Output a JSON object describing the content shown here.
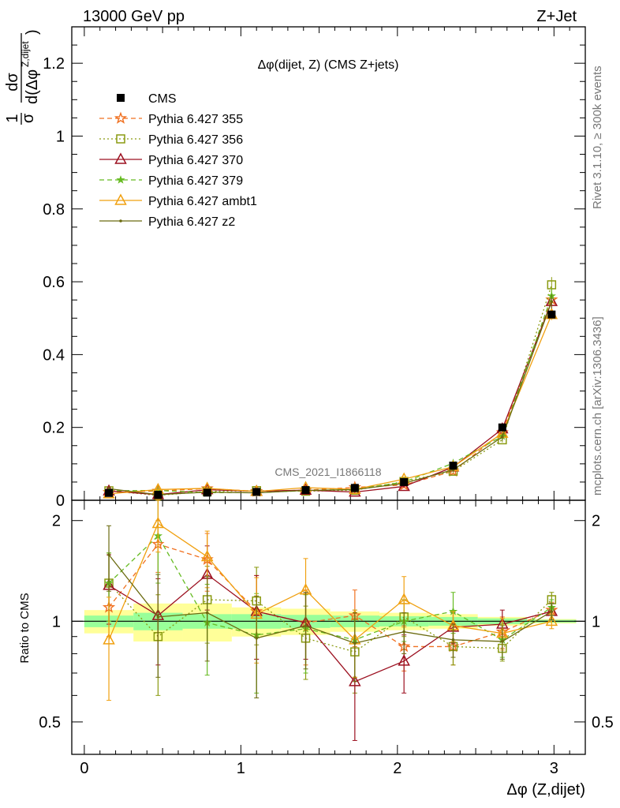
{
  "header": {
    "energy_label": "13000 GeV pp",
    "process_label": "Z+Jet"
  },
  "chart_data": {
    "type": "line",
    "title": "Δφ(dijet, Z) (CMS Z+jets)",
    "analysis_label": "CMS_2021_I1866118",
    "side_label_top": "Rivet 3.1.10, ≥ 300k events",
    "side_label_bottom": "mcplots.cern.ch [arXiv:1306.3436]",
    "ylabel_main": "1/σ dσ/d(Δφ^{Z,dijet})",
    "ylabel_main_parts": {
      "one": "1",
      "sigma": "σ",
      "dsigma": "dσ",
      "den_left": "d(Δφ",
      "den_sup": "Z,dijet",
      "den_right": ")"
    },
    "ylabel_ratio": "Ratio to CMS",
    "xlabel": "Δφ (Z,dijet)",
    "xlim": [
      -0.08,
      3.2
    ],
    "ylim_main": [
      0,
      1.3
    ],
    "ylim_ratio": [
      0.4,
      2.3
    ],
    "yscale_ratio": "log",
    "x_ticks": [
      "0",
      "1",
      "2",
      "3"
    ],
    "y_ticks_main": [
      "0",
      "0.2",
      "0.4",
      "0.6",
      "0.8",
      "1",
      "1.2"
    ],
    "y_ticks_ratio": [
      "0.5",
      "1",
      "2"
    ],
    "x": [
      0.157,
      0.471,
      0.785,
      1.1,
      1.414,
      1.728,
      2.042,
      2.356,
      2.67,
      2.985
    ],
    "data": {
      "name": "CMS",
      "values": [
        0.02,
        0.015,
        0.021,
        0.023,
        0.028,
        0.034,
        0.05,
        0.095,
        0.2,
        0.51
      ],
      "band_bins": [
        {
          "x0": 0.0,
          "x1": 0.314,
          "stat": 0.04,
          "tot": 0.08
        },
        {
          "x0": 0.314,
          "x1": 0.628,
          "stat": 0.06,
          "tot": 0.13
        },
        {
          "x0": 0.628,
          "x1": 0.942,
          "stat": 0.05,
          "tot": 0.13
        },
        {
          "x0": 0.942,
          "x1": 1.257,
          "stat": 0.05,
          "tot": 0.1
        },
        {
          "x0": 1.257,
          "x1": 1.571,
          "stat": 0.045,
          "tot": 0.09
        },
        {
          "x0": 1.571,
          "x1": 1.885,
          "stat": 0.04,
          "tot": 0.07
        },
        {
          "x0": 1.885,
          "x1": 2.199,
          "stat": 0.035,
          "tot": 0.06
        },
        {
          "x0": 2.199,
          "x1": 2.513,
          "stat": 0.03,
          "tot": 0.05
        },
        {
          "x0": 2.513,
          "x1": 2.827,
          "stat": 0.02,
          "tot": 0.03
        },
        {
          "x0": 2.827,
          "x1": 3.142,
          "stat": 0.01,
          "tot": 0.015
        }
      ]
    },
    "series": [
      {
        "name": "Pythia 6.427 355",
        "color": "#f07020",
        "dash": "6,4",
        "marker": "star",
        "ratio": [
          1.1,
          1.7,
          1.53,
          1.07,
          0.99,
          1.04,
          0.84,
          0.84,
          0.93,
          1.08
        ],
        "err": [
          0.2,
          0.3,
          0.3,
          0.3,
          0.25,
          0.2,
          0.13,
          0.1,
          0.1,
          0.06
        ]
      },
      {
        "name": "Pythia 6.427 356",
        "color": "#8a9a10",
        "dash": "2,3",
        "marker": "square",
        "ratio": [
          1.3,
          0.9,
          1.16,
          1.15,
          0.89,
          0.81,
          1.03,
          0.84,
          0.83,
          1.16
        ],
        "err": [
          0.3,
          0.3,
          0.3,
          0.3,
          0.22,
          0.2,
          0.13,
          0.1,
          0.07,
          0.06
        ]
      },
      {
        "name": "Pythia 6.427 370",
        "color": "#9c1020",
        "dash": "",
        "marker": "triangle",
        "ratio": [
          1.28,
          1.04,
          1.38,
          1.07,
          0.99,
          0.66,
          0.76,
          0.96,
          0.98,
          1.07
        ],
        "err": [
          0.3,
          0.3,
          0.3,
          0.3,
          0.22,
          0.22,
          0.15,
          0.1,
          0.1,
          0.06
        ]
      },
      {
        "name": "Pythia 6.427 379",
        "color": "#66bb22",
        "dash": "6,4",
        "marker": "smallstar",
        "ratio": [
          1.3,
          1.8,
          0.99,
          0.91,
          0.95,
          0.88,
          1.0,
          1.07,
          0.88,
          1.1
        ],
        "err": [
          0.3,
          0.5,
          0.3,
          0.3,
          0.25,
          0.2,
          0.13,
          0.15,
          0.1,
          0.06
        ]
      },
      {
        "name": "Pythia 6.427 ambt1",
        "color": "#f0a010",
        "dash": "",
        "marker": "triangle",
        "ratio": [
          0.88,
          1.96,
          1.56,
          1.05,
          1.24,
          0.88,
          1.16,
          0.97,
          0.92,
          1.0
        ],
        "err": [
          0.3,
          0.35,
          0.3,
          0.3,
          0.3,
          0.2,
          0.2,
          0.1,
          0.1,
          0.05
        ]
      },
      {
        "name": "Pythia 6.427 z2",
        "color": "#6b6b10",
        "dash": "",
        "marker": "dot",
        "ratio": [
          1.58,
          1.03,
          1.06,
          0.89,
          0.97,
          0.86,
          0.93,
          0.88,
          0.87,
          1.07
        ],
        "err": [
          0.35,
          0.35,
          0.3,
          0.3,
          0.25,
          0.2,
          0.13,
          0.1,
          0.1,
          0.06
        ]
      }
    ]
  }
}
